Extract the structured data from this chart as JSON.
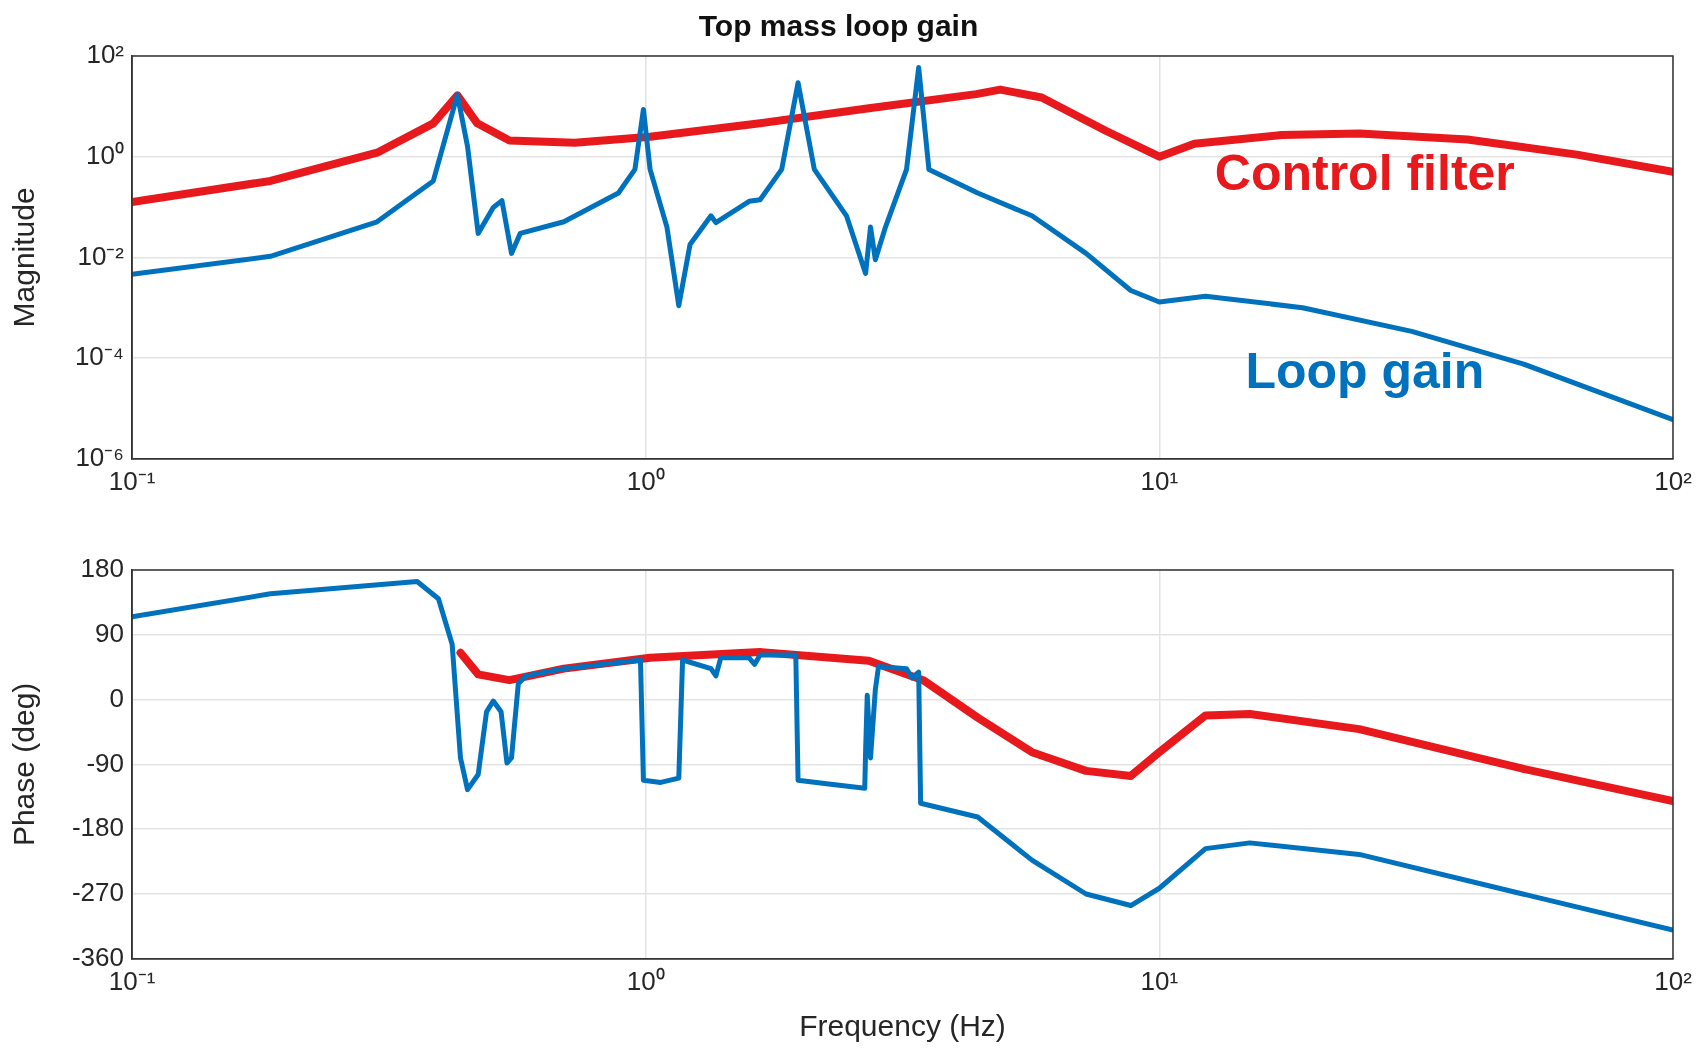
{
  "chart_data": [
    {
      "type": "line",
      "title": "Top mass loop gain",
      "ylabel": "Magnitude",
      "log": "xy",
      "grid": true,
      "marker": "none",
      "xlim": [
        0.1,
        100
      ],
      "xticks": [
        {
          "value": 0.1,
          "label": "10⁻¹"
        },
        {
          "value": 1,
          "label": "10⁰"
        },
        {
          "value": 10,
          "label": "10¹"
        },
        {
          "value": 100,
          "label": "10²"
        }
      ],
      "ylim": [
        1e-06,
        100
      ],
      "yticks": [
        {
          "value": 1e-06,
          "label": "10⁻⁶"
        },
        {
          "value": 0.0001,
          "label": "10⁻⁴"
        },
        {
          "value": 0.01,
          "label": "10⁻²"
        },
        {
          "value": 1,
          "label": "10⁰"
        },
        {
          "value": 100,
          "label": "10²"
        }
      ],
      "series": [
        {
          "name": "Control filter",
          "color": "#e8191c",
          "x": [
            0.1,
            0.186,
            0.3,
            0.386,
            0.43,
            0.47,
            0.543,
            0.728,
            1.02,
            1.67,
            2.72,
            4.4,
            4.9,
            5.9,
            7.9,
            10,
            11.7,
            17.3,
            24.5,
            39.8,
            65,
            100
          ],
          "values": [
            0.126,
            0.33,
            1.2,
            4.6,
            16.5,
            4.6,
            2.1,
            1.9,
            2.5,
            4.6,
            9.2,
            17.5,
            21.5,
            15,
            3.2,
            1,
            1.8,
            2.7,
            2.9,
            2.2,
            1.1,
            0.5
          ]
        },
        {
          "name": "Loop gain",
          "color": "#0072bd",
          "x": [
            0.1,
            0.186,
            0.3,
            0.386,
            0.43,
            0.45,
            0.472,
            0.505,
            0.525,
            0.548,
            0.57,
            0.693,
            0.885,
            0.953,
            0.99,
            1.02,
            1.1,
            1.16,
            1.22,
            1.34,
            1.37,
            1.59,
            1.67,
            1.84,
            1.98,
            2.13,
            2.46,
            2.68,
            2.74,
            2.8,
            2.93,
            3.22,
            3.4,
            3.56,
            4.43,
            5.65,
            7.2,
            8.8,
            10,
            12.3,
            19,
            31,
            51,
            100
          ],
          "values": [
            0.0046,
            0.0105,
            0.051,
            0.33,
            17,
            1.6,
            0.03,
            0.098,
            0.134,
            0.012,
            0.03,
            0.051,
            0.19,
            0.56,
            8.7,
            0.56,
            0.04,
            0.0011,
            0.018,
            0.067,
            0.049,
            0.13,
            0.14,
            0.56,
            29.5,
            0.56,
            0.067,
            0.0048,
            0.04,
            0.009,
            0.04,
            0.56,
            59,
            0.56,
            0.19,
            0.067,
            0.012,
            0.0022,
            0.0013,
            0.0017,
            0.001,
            0.00034,
            7.7e-05,
            6e-06
          ]
        }
      ]
    },
    {
      "type": "line",
      "xlabel": "Frequency (Hz)",
      "ylabel": "Phase (deg)",
      "log": "x",
      "grid": true,
      "marker": "none",
      "xlim": [
        0.1,
        100
      ],
      "xticks": [
        {
          "value": 0.1,
          "label": "10⁻¹"
        },
        {
          "value": 1,
          "label": "10⁰"
        },
        {
          "value": 10,
          "label": "10¹"
        },
        {
          "value": 100,
          "label": "10²"
        }
      ],
      "ylim": [
        -360,
        180
      ],
      "yticks": [
        -360,
        -270,
        -180,
        -90,
        0,
        90,
        180
      ],
      "series": [
        {
          "color": "#e8191c",
          "x": [
            0.436,
            0.472,
            0.543,
            0.693,
            1.02,
            1.67,
            2.72,
            3.47,
            4.43,
            5.65,
            7.2,
            8.8,
            10,
            12.3,
            15,
            24.5,
            51,
            100
          ],
          "values": [
            65,
            35,
            27,
            43,
            58,
            66,
            54,
            27,
            -25,
            -73,
            -99,
            -106,
            -73,
            -22,
            -20,
            -41,
            -96,
            -141
          ]
        },
        {
          "color": "#0072bd",
          "x": [
            0.1,
            0.186,
            0.359,
            0.395,
            0.42,
            0.436,
            0.45,
            0.472,
            0.49,
            0.505,
            0.523,
            0.537,
            0.548,
            0.565,
            0.585,
            0.693,
            0.977,
            0.99,
            1.07,
            1.16,
            1.18,
            1.34,
            1.37,
            1.4,
            1.59,
            1.63,
            1.67,
            1.96,
            1.98,
            2.25,
            2.67,
            2.68,
            2.7,
            2.74,
            2.8,
            2.84,
            3.22,
            3.3,
            3.4,
            3.43,
            4.43,
            5.65,
            7.2,
            8.8,
            10,
            12.3,
            15,
            24.5,
            51,
            100
          ],
          "values": [
            115,
            147,
            164,
            140,
            77,
            -81,
            -125,
            -104,
            -17,
            -2,
            -17,
            -88,
            -81,
            22,
            33,
            43,
            55,
            -112,
            -115,
            -109,
            55,
            43,
            33,
            58,
            58,
            49,
            62,
            62,
            -112,
            -117,
            -123,
            -73,
            6,
            -81,
            14,
            46,
            43,
            30,
            38,
            -144,
            -163,
            -223,
            -270,
            -286,
            -262,
            -207,
            -199,
            -215,
            -270,
            -320
          ]
        }
      ]
    }
  ]
}
